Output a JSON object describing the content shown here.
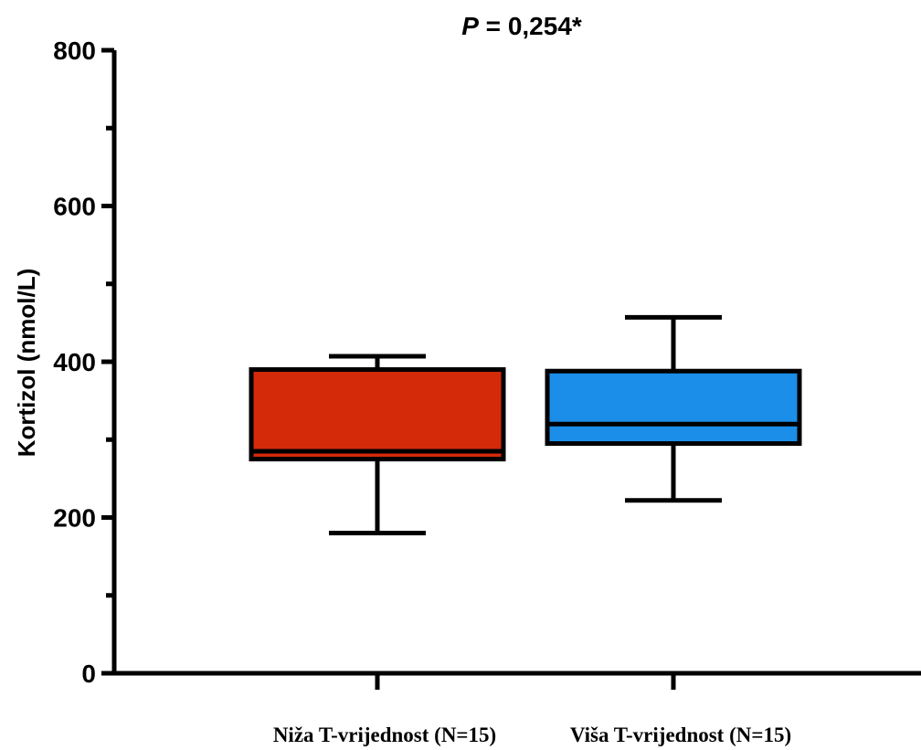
{
  "chart_data": {
    "type": "box",
    "title_prefix": "P",
    "title_rest": " = 0,254*",
    "ylabel": "Kortizol (nmol/L)",
    "xlabel": "",
    "ylim": [
      0,
      800
    ],
    "yticks_major": [
      0,
      200,
      400,
      600,
      800
    ],
    "yticks_minor": [
      100,
      300,
      500,
      700
    ],
    "categories": [
      "Niža T-vrijednost (N=15)",
      "Viša T-vrijednost (N=15)"
    ],
    "boxes": [
      {
        "category": "Niža T-vrijednost (N=15)",
        "min": 180,
        "q1": 275,
        "median": 285,
        "q3": 390,
        "max": 407,
        "color": "#d42a0a"
      },
      {
        "category": "Viša T-vrijednost (N=15)",
        "min": 222,
        "q1": 295,
        "median": 320,
        "q3": 388,
        "max": 457,
        "color": "#1a8ee8"
      }
    ],
    "grid": false,
    "legend": "none"
  }
}
